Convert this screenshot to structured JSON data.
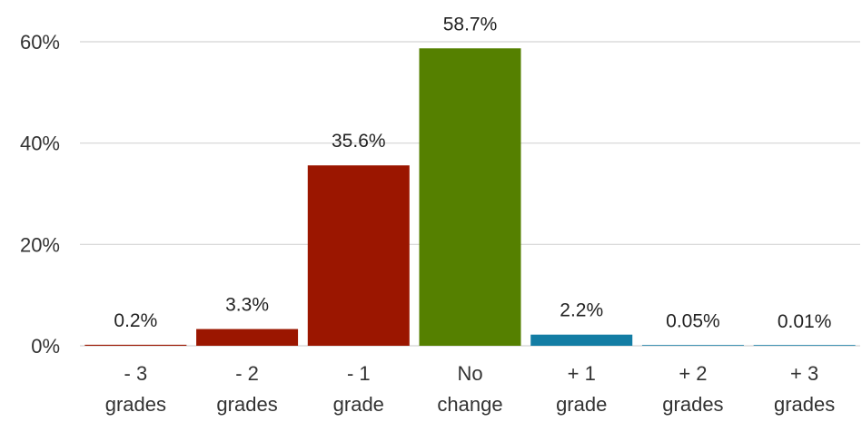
{
  "chart_data": {
    "type": "bar",
    "categories": [
      [
        "- 3",
        "grades"
      ],
      [
        "- 2",
        "grades"
      ],
      [
        "- 1",
        "grade"
      ],
      [
        "No",
        "change"
      ],
      [
        "+ 1",
        "grade"
      ],
      [
        "+ 2",
        "grades"
      ],
      [
        "+ 3",
        "grades"
      ]
    ],
    "values": [
      0.2,
      3.3,
      35.6,
      58.7,
      2.2,
      0.05,
      0.01
    ],
    "data_labels": [
      "0.2%",
      "3.3%",
      "35.6%",
      "58.7%",
      "2.2%",
      "0.05%",
      "0.01%"
    ],
    "colors": [
      "#9b1600",
      "#9b1600",
      "#9b1600",
      "#558000",
      "#137da4",
      "#137da4",
      "#137da4"
    ],
    "ylim": [
      0,
      60
    ],
    "yticks": [
      0,
      20,
      40,
      60
    ],
    "ytick_labels": [
      "0%",
      "20%",
      "40%",
      "60%"
    ],
    "grid": true,
    "legend": "none",
    "title": "",
    "xlabel": "",
    "ylabel": ""
  }
}
